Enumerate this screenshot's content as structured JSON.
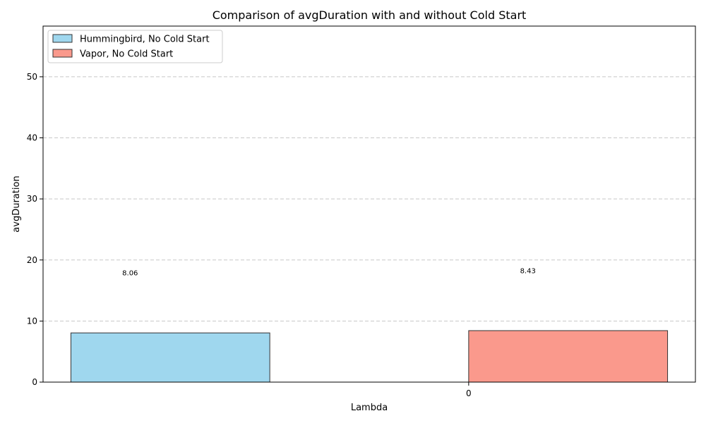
{
  "chart_data": {
    "type": "bar",
    "title": "Comparison of avgDuration with and without Cold Start",
    "xlabel": "Lambda",
    "ylabel": "avgDuration",
    "categories": [
      "0"
    ],
    "series": [
      {
        "name": "Hummingbird, No Cold Start",
        "values": [
          8.06
        ],
        "color": "#9fd7ee"
      },
      {
        "name": "Vapor, No Cold Start",
        "values": [
          8.43
        ],
        "color": "#fa998c"
      }
    ],
    "data_labels": [
      "8.06",
      "8.43"
    ],
    "ylim": [
      0,
      58.3
    ],
    "yticks": [
      0,
      10,
      20,
      30,
      40,
      50
    ],
    "xlim": [
      -1.07,
      0.57
    ],
    "grid": {
      "axis": "y",
      "style": "dashed"
    },
    "legend": {
      "position": "top-left"
    },
    "colors": {
      "edge": "#333333",
      "grid": "#c8c8c8"
    }
  }
}
